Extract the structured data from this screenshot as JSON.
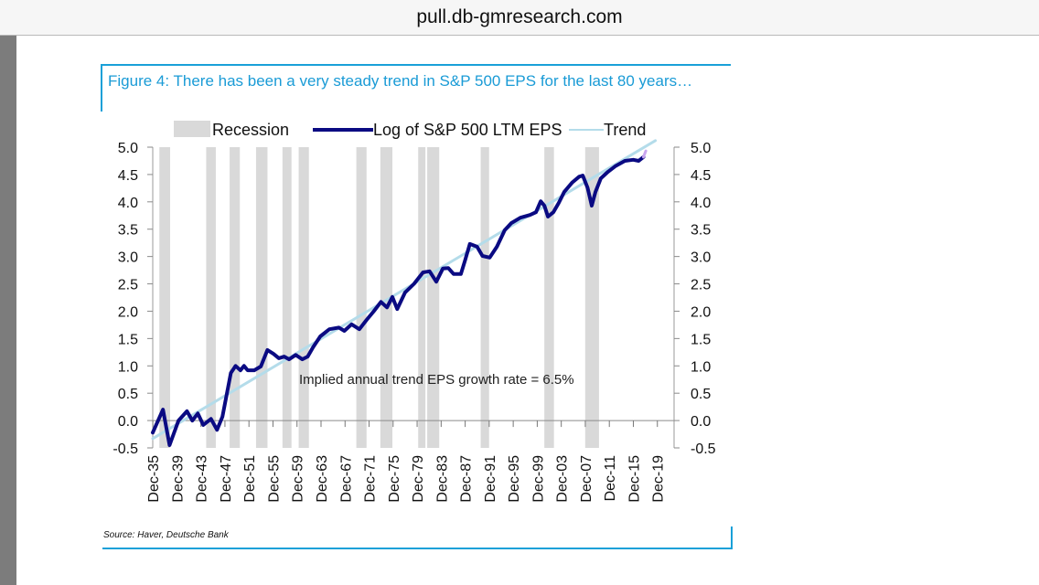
{
  "browser": {
    "url": "pull.db-gmresearch.com"
  },
  "figure": {
    "title": "Figure 4: There has been a very steady trend in S&P 500 EPS for the last 80 years…",
    "source": "Source: Haver, Deutsche Bank"
  },
  "colors": {
    "accent": "#19a0d8",
    "eps_line": "#0a0a82",
    "trend_line": "#b4dcea",
    "recession": "#d9d9d9",
    "forecast_tail": "#c9a6f0"
  },
  "chart_data": {
    "type": "line",
    "title": "Figure 4: There has been a very steady trend in S&P 500 EPS for the last 80 years…",
    "xlabel": "",
    "ylabel": "",
    "xlim": [
      1935.9,
      2022.7
    ],
    "ylim": [
      -0.5,
      5.0
    ],
    "grid": false,
    "legend_position": "top",
    "yticks": [
      "5.0",
      "4.5",
      "4.0",
      "3.5",
      "3.0",
      "2.5",
      "2.0",
      "1.5",
      "1.0",
      "0.5",
      "0.0",
      "-0.5"
    ],
    "ytick_values": [
      5.0,
      4.5,
      4.0,
      3.5,
      3.0,
      2.5,
      2.0,
      1.5,
      1.0,
      0.5,
      0.0,
      -0.5
    ],
    "xtick_labels": [
      "Dec-35",
      "Dec-39",
      "Dec-43",
      "Dec-47",
      "Dec-51",
      "Dec-55",
      "Dec-59",
      "Dec-63",
      "Dec-67",
      "Dec-71",
      "Dec-75",
      "Dec-79",
      "Dec-83",
      "Dec-87",
      "Dec-91",
      "Dec-95",
      "Dec-99",
      "Dec-03",
      "Dec-07",
      "Dec-11",
      "Dec-15",
      "Dec-19"
    ],
    "xtick_years": [
      1935.92,
      1939.92,
      1943.92,
      1947.92,
      1951.92,
      1955.92,
      1959.92,
      1963.92,
      1967.92,
      1971.92,
      1975.92,
      1979.92,
      1983.92,
      1987.92,
      1991.92,
      1995.92,
      1999.92,
      2003.92,
      2007.92,
      2011.92,
      2015.92,
      2019.92
    ],
    "legend": [
      {
        "label": "Recession",
        "kind": "band"
      },
      {
        "label": "Log of S&P 500 LTM EPS",
        "kind": "line"
      },
      {
        "label": "Trend",
        "kind": "line"
      }
    ],
    "annotation": "Implied annual trend EPS growth rate = 6.5%",
    "recessions": [
      [
        1937.0,
        1938.8
      ],
      [
        1944.8,
        1946.4
      ],
      [
        1948.7,
        1950.4
      ],
      [
        1953.1,
        1955.0
      ],
      [
        1957.5,
        1959.0
      ],
      [
        1960.2,
        1961.9
      ],
      [
        1969.8,
        1971.5
      ],
      [
        1973.8,
        1975.8
      ],
      [
        1980.1,
        1981.3
      ],
      [
        1981.6,
        1983.6
      ],
      [
        1990.5,
        1991.9
      ],
      [
        2001.1,
        2002.7
      ],
      [
        2007.9,
        2010.2
      ]
    ],
    "series": [
      {
        "name": "Log of S&P 500 LTM EPS",
        "x": [
          1935.9,
          1937.6,
          1938.7,
          1940.2,
          1941.6,
          1942.5,
          1943.4,
          1944.3,
          1945.6,
          1946.6,
          1947.5,
          1948.9,
          1949.7,
          1950.5,
          1951.1,
          1951.7,
          1952.8,
          1953.9,
          1955.0,
          1956.0,
          1956.9,
          1957.8,
          1958.6,
          1959.7,
          1960.8,
          1961.7,
          1962.6,
          1963.8,
          1965.3,
          1966.9,
          1967.8,
          1969.0,
          1970.3,
          1971.5,
          1972.7,
          1973.9,
          1974.9,
          1975.8,
          1976.6,
          1977.9,
          1979.4,
          1980.9,
          1982.0,
          1983.1,
          1984.2,
          1985.1,
          1986.0,
          1987.2,
          1987.9,
          1988.7,
          1989.9,
          1990.8,
          1992.0,
          1993.2,
          1994.5,
          1995.6,
          1997.1,
          1998.7,
          1999.7,
          2000.5,
          2001.1,
          2001.7,
          2002.6,
          2003.5,
          2004.4,
          2005.7,
          2006.9,
          2007.5,
          2008.3,
          2009.0,
          2009.6,
          2010.5,
          2011.7,
          2012.9,
          2014.5,
          2015.9,
          2016.8,
          2017.6,
          2018.0
        ],
        "values": [
          -0.22,
          0.2,
          -0.45,
          0.0,
          0.17,
          0.0,
          0.13,
          -0.08,
          0.03,
          -0.17,
          0.07,
          0.87,
          1.0,
          0.92,
          1.0,
          0.92,
          0.92,
          0.99,
          1.29,
          1.22,
          1.14,
          1.17,
          1.12,
          1.2,
          1.12,
          1.17,
          1.34,
          1.54,
          1.67,
          1.7,
          1.64,
          1.76,
          1.67,
          1.84,
          2.0,
          2.17,
          2.07,
          2.26,
          2.04,
          2.34,
          2.5,
          2.71,
          2.73,
          2.54,
          2.78,
          2.79,
          2.68,
          2.68,
          2.93,
          3.23,
          3.18,
          3.01,
          2.98,
          3.18,
          3.48,
          3.61,
          3.71,
          3.76,
          3.81,
          4.01,
          3.93,
          3.73,
          3.81,
          3.98,
          4.18,
          4.35,
          4.46,
          4.48,
          4.26,
          3.93,
          4.18,
          4.43,
          4.55,
          4.65,
          4.75,
          4.77,
          4.75,
          4.82,
          4.93
        ]
      },
      {
        "name": "Trend",
        "x": [
          1935.9,
          2019.6
        ],
        "values": [
          -0.33,
          5.12
        ]
      }
    ]
  }
}
